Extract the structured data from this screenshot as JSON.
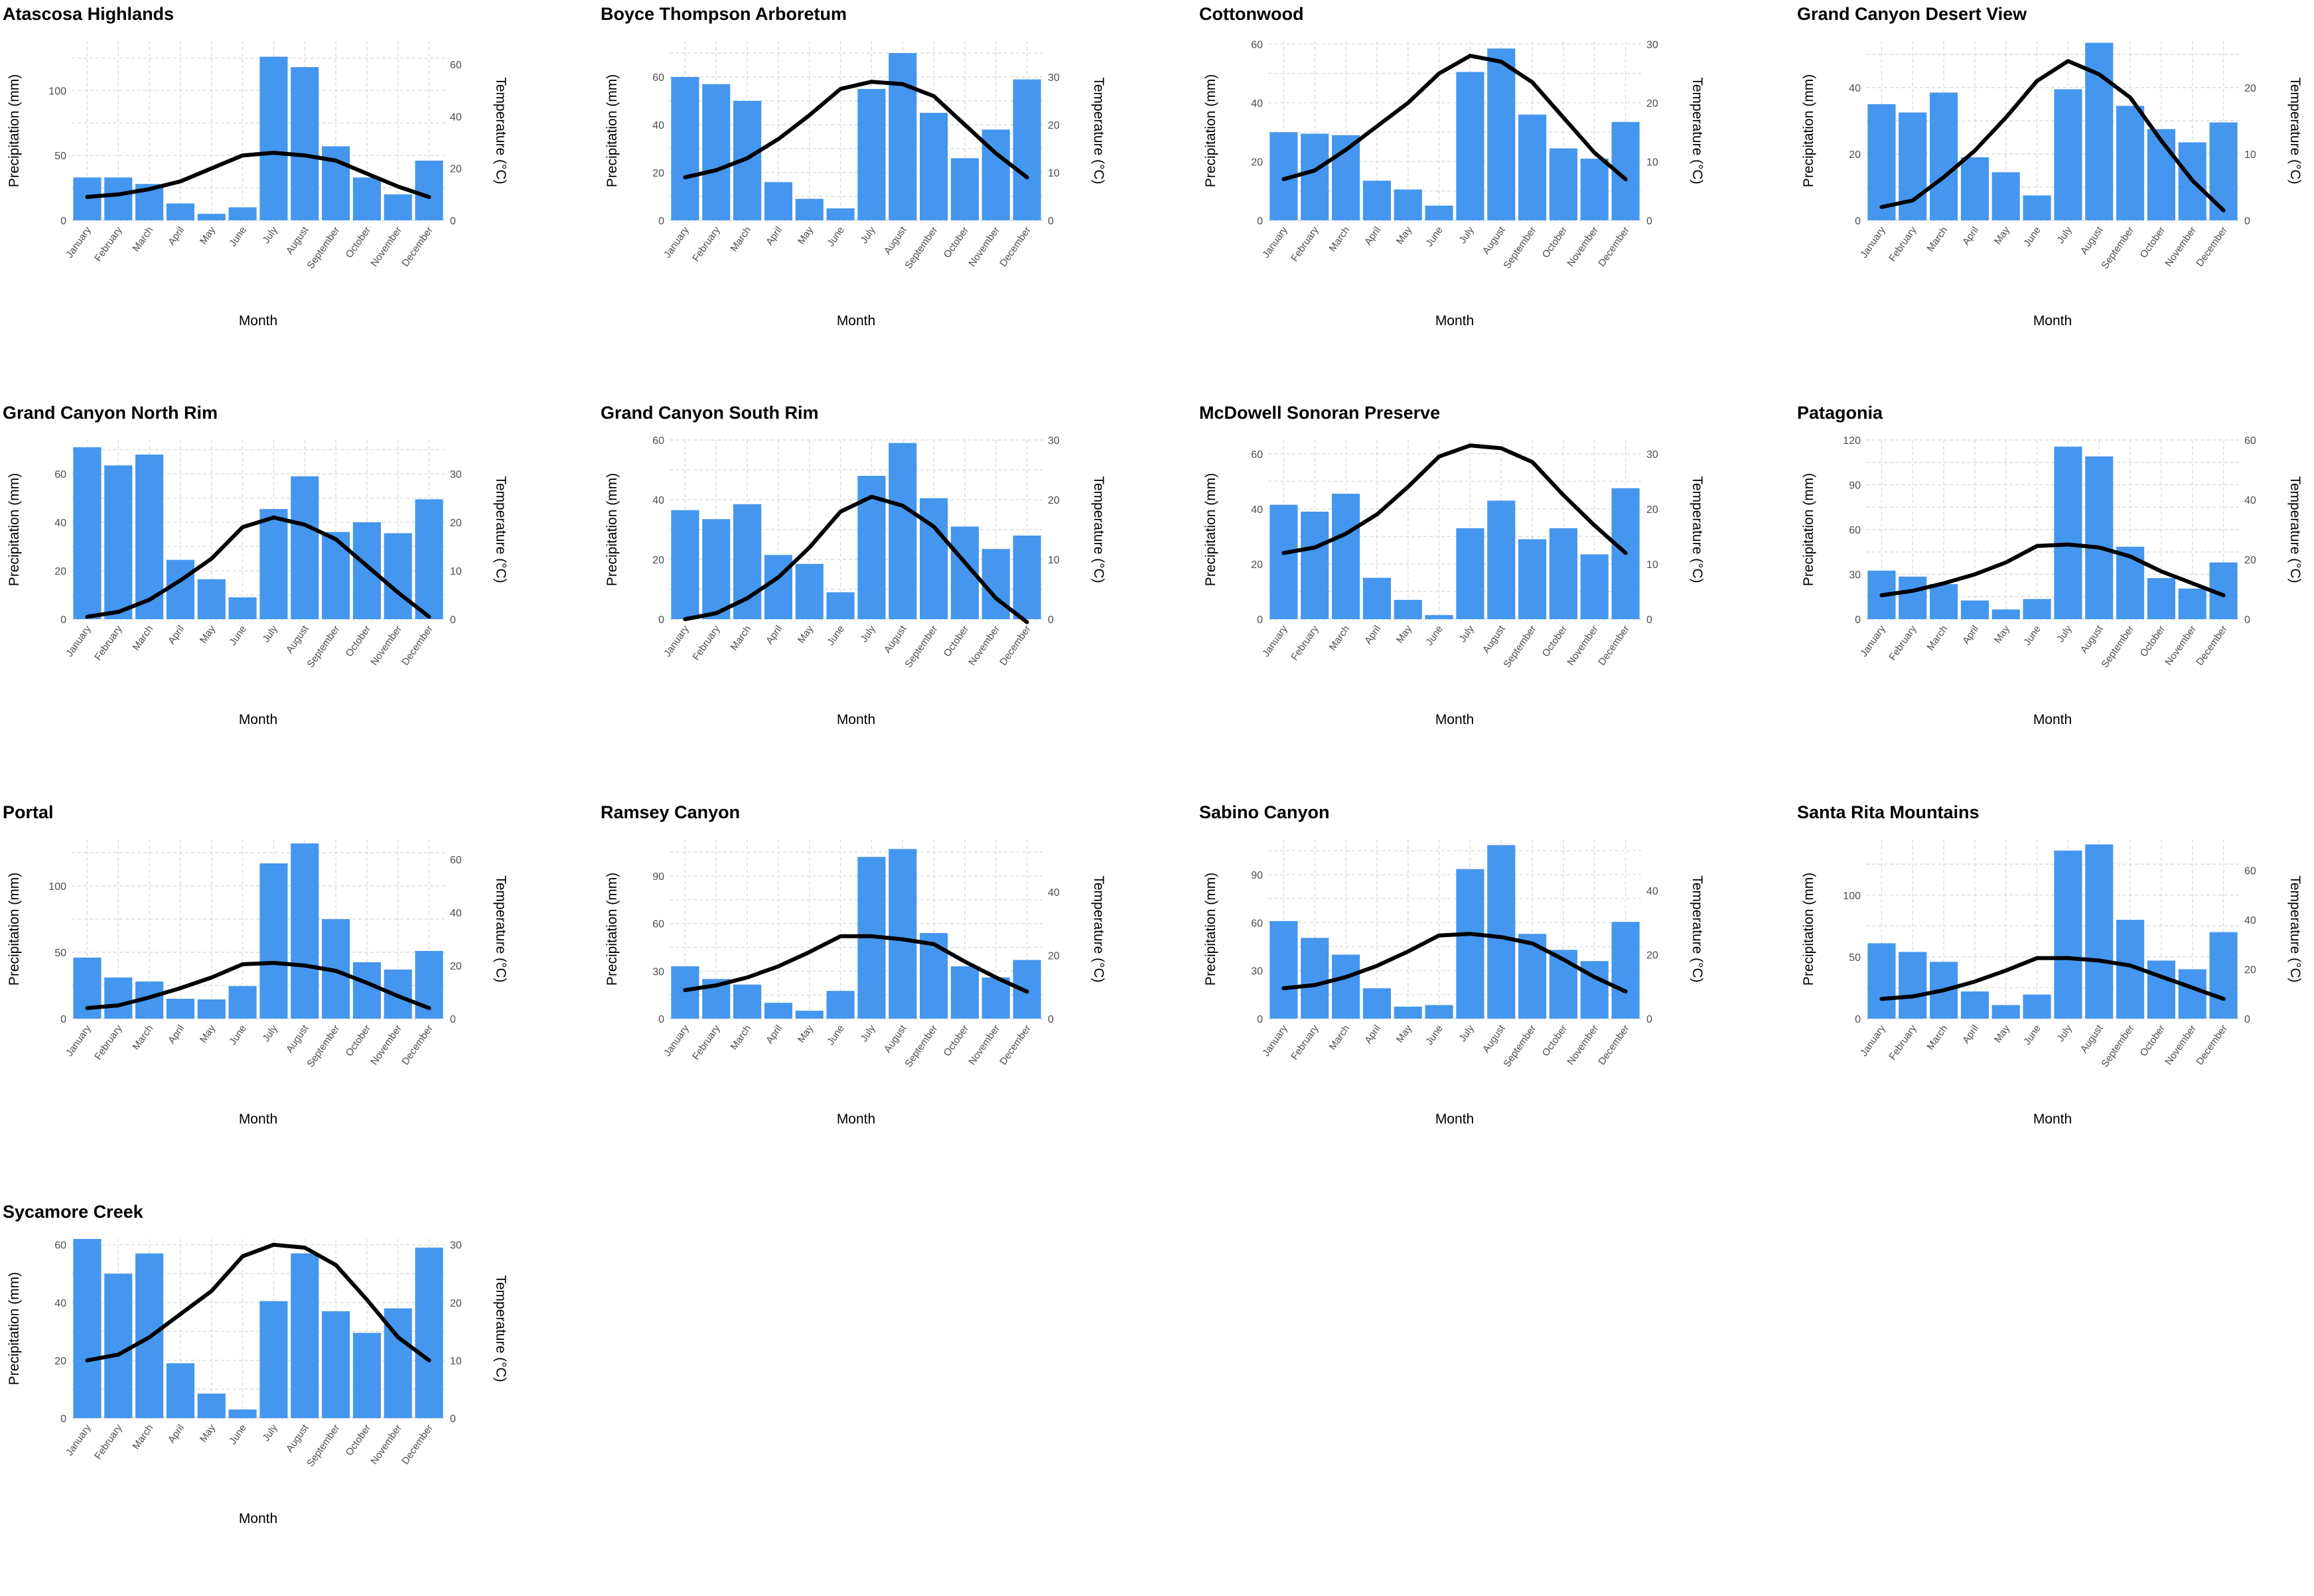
{
  "common": {
    "months": [
      "January",
      "February",
      "March",
      "April",
      "May",
      "June",
      "July",
      "August",
      "September",
      "October",
      "November",
      "December"
    ],
    "xlabel": "Month",
    "ylabel_left": "Precipitation (mm)",
    "ylabel_right": "Temperature (°C)",
    "bar_color": "#4596ee",
    "line_color": "#000000"
  },
  "chart_data": [
    {
      "type": "bar",
      "title": "Atascosa Highlands",
      "precip_ticks": [
        0,
        50,
        100
      ],
      "precip_lim": [
        0,
        138
      ],
      "temp_ticks": [
        0,
        20,
        40,
        60
      ],
      "temp_lim": [
        0,
        69
      ],
      "categories": [
        "January",
        "February",
        "March",
        "April",
        "May",
        "June",
        "July",
        "August",
        "September",
        "October",
        "November",
        "December"
      ],
      "series": [
        {
          "values": [
            33,
            33,
            28,
            13,
            5,
            10,
            126,
            118,
            57,
            33,
            20,
            46
          ]
        },
        {
          "values": [
            9,
            10,
            12,
            15,
            20,
            25,
            26,
            25,
            23,
            18,
            13,
            9
          ]
        }
      ]
    },
    {
      "type": "bar",
      "title": "Boyce Thompson Arboretum",
      "precip_ticks": [
        0,
        20,
        40,
        60
      ],
      "precip_lim": [
        0,
        75
      ],
      "temp_ticks": [
        0,
        10,
        20,
        30
      ],
      "temp_lim": [
        0,
        37.5
      ],
      "categories": [
        "January",
        "February",
        "March",
        "April",
        "May",
        "June",
        "July",
        "August",
        "September",
        "October",
        "November",
        "December"
      ],
      "series": [
        {
          "values": [
            60,
            57,
            50,
            16,
            9,
            5,
            55,
            70,
            45,
            26,
            38,
            59
          ]
        },
        {
          "values": [
            9,
            10.5,
            13,
            17,
            22,
            27.5,
            29,
            28.5,
            26,
            20,
            14,
            9
          ]
        }
      ]
    },
    {
      "type": "bar",
      "title": "Cottonwood",
      "precip_ticks": [
        0,
        20,
        40,
        60
      ],
      "precip_lim": [
        0,
        61
      ],
      "temp_ticks": [
        0,
        10,
        20,
        30
      ],
      "temp_lim": [
        0,
        30.5
      ],
      "categories": [
        "January",
        "February",
        "March",
        "April",
        "May",
        "June",
        "July",
        "August",
        "September",
        "October",
        "November",
        "December"
      ],
      "series": [
        {
          "values": [
            30,
            29.5,
            29,
            13.5,
            10.5,
            5,
            50.5,
            58.5,
            36,
            24.5,
            21,
            33.5
          ]
        },
        {
          "values": [
            7,
            8.5,
            12,
            16,
            20,
            25,
            28,
            27,
            23.5,
            17.5,
            11.5,
            7
          ]
        }
      ]
    },
    {
      "type": "bar",
      "title": "Grand Canyon Desert View",
      "precip_ticks": [
        0,
        20,
        40
      ],
      "precip_lim": [
        0,
        54
      ],
      "temp_ticks": [
        0,
        10,
        20
      ],
      "temp_lim": [
        0,
        27
      ],
      "categories": [
        "January",
        "February",
        "March",
        "April",
        "May",
        "June",
        "July",
        "August",
        "September",
        "October",
        "November",
        "December"
      ],
      "series": [
        {
          "values": [
            35,
            32.5,
            38.5,
            19,
            14.5,
            7.5,
            39.5,
            53.5,
            34.5,
            27.5,
            23.5,
            29.5
          ]
        },
        {
          "values": [
            2,
            3,
            6.5,
            10.5,
            15.5,
            21,
            24,
            22,
            18.5,
            12,
            6,
            1.5
          ]
        }
      ]
    },
    {
      "type": "bar",
      "title": "Grand Canyon North Rim",
      "precip_ticks": [
        0,
        20,
        40,
        60
      ],
      "precip_lim": [
        0,
        74
      ],
      "temp_ticks": [
        0,
        10,
        20,
        30
      ],
      "temp_lim": [
        0,
        37
      ],
      "categories": [
        "January",
        "February",
        "March",
        "April",
        "May",
        "June",
        "July",
        "August",
        "September",
        "October",
        "November",
        "December"
      ],
      "series": [
        {
          "values": [
            71,
            63.5,
            68,
            24.5,
            16.5,
            9,
            45.5,
            59,
            36,
            40,
            35.5,
            49.5
          ]
        },
        {
          "values": [
            0.5,
            1.5,
            4,
            8,
            12.5,
            19,
            21,
            19.5,
            16.5,
            11,
            5.5,
            0.5
          ]
        }
      ]
    },
    {
      "type": "bar",
      "title": "Grand Canyon South Rim",
      "precip_ticks": [
        0,
        20,
        40,
        60
      ],
      "precip_lim": [
        0,
        60
      ],
      "temp_ticks": [
        0,
        10,
        20,
        30
      ],
      "temp_lim": [
        0,
        30
      ],
      "categories": [
        "January",
        "February",
        "March",
        "April",
        "May",
        "June",
        "July",
        "August",
        "September",
        "October",
        "November",
        "December"
      ],
      "series": [
        {
          "values": [
            36.5,
            33.5,
            38.5,
            21.5,
            18.5,
            9,
            48,
            59,
            40.5,
            31,
            23.5,
            28
          ]
        },
        {
          "values": [
            0,
            1,
            3.5,
            7,
            12,
            18,
            20.5,
            19,
            15.5,
            9.5,
            3.5,
            -0.5
          ]
        }
      ]
    },
    {
      "type": "bar",
      "title": "McDowell Sonoran Preserve",
      "precip_ticks": [
        0,
        20,
        40,
        60
      ],
      "precip_lim": [
        0,
        65
      ],
      "temp_ticks": [
        0,
        10,
        20,
        30
      ],
      "temp_lim": [
        0,
        32.5
      ],
      "categories": [
        "January",
        "February",
        "March",
        "April",
        "May",
        "June",
        "July",
        "August",
        "September",
        "October",
        "November",
        "December"
      ],
      "series": [
        {
          "values": [
            41.5,
            39,
            45.5,
            15,
            7,
            1.5,
            33,
            43,
            29,
            33,
            23.5,
            47.5
          ]
        },
        {
          "values": [
            12,
            13,
            15.5,
            19,
            24,
            29.5,
            31.5,
            31,
            28.5,
            22.5,
            17,
            12
          ]
        }
      ]
    },
    {
      "type": "bar",
      "title": "Patagonia",
      "precip_ticks": [
        0,
        30,
        60,
        90,
        120
      ],
      "precip_lim": [
        0,
        120
      ],
      "temp_ticks": [
        0,
        20,
        40,
        60
      ],
      "temp_lim": [
        0,
        60
      ],
      "categories": [
        "January",
        "February",
        "March",
        "April",
        "May",
        "June",
        "July",
        "August",
        "September",
        "October",
        "November",
        "December"
      ],
      "series": [
        {
          "values": [
            32.5,
            28.5,
            23.5,
            12.5,
            6.5,
            13.5,
            115.5,
            109,
            48.5,
            27.5,
            20.5,
            38
          ]
        },
        {
          "values": [
            8,
            9.5,
            12,
            15,
            19,
            24.5,
            25,
            24,
            21,
            16,
            12,
            8
          ]
        }
      ]
    },
    {
      "type": "bar",
      "title": "Portal",
      "precip_ticks": [
        0,
        50,
        100
      ],
      "precip_lim": [
        0,
        135
      ],
      "temp_ticks": [
        0,
        20,
        40,
        60
      ],
      "temp_lim": [
        0,
        67.5
      ],
      "categories": [
        "January",
        "February",
        "March",
        "April",
        "May",
        "June",
        "July",
        "August",
        "September",
        "October",
        "November",
        "December"
      ],
      "series": [
        {
          "values": [
            46,
            31,
            28,
            15,
            14.5,
            24.5,
            117,
            132,
            75,
            42.5,
            37,
            51
          ]
        },
        {
          "values": [
            4,
            5,
            8,
            11.5,
            15.5,
            20.5,
            21,
            20,
            18,
            13.5,
            8.5,
            4
          ]
        }
      ]
    },
    {
      "type": "bar",
      "title": "Ramsey Canyon",
      "precip_ticks": [
        0,
        30,
        60,
        90
      ],
      "precip_lim": [
        0,
        113
      ],
      "temp_ticks": [
        0,
        20,
        40
      ],
      "temp_lim": [
        0,
        56.5
      ],
      "categories": [
        "January",
        "February",
        "March",
        "April",
        "May",
        "June",
        "July",
        "August",
        "September",
        "October",
        "November",
        "December"
      ],
      "series": [
        {
          "values": [
            33,
            25,
            21.5,
            10,
            5,
            17.5,
            102,
            107,
            54,
            33,
            26,
            37
          ]
        },
        {
          "values": [
            9,
            10.5,
            13,
            16.5,
            21,
            26,
            26,
            25,
            23.5,
            18,
            13,
            8.5
          ]
        }
      ]
    },
    {
      "type": "bar",
      "title": "Sabino Canyon",
      "precip_ticks": [
        0,
        30,
        60,
        90
      ],
      "precip_lim": [
        0,
        112
      ],
      "temp_ticks": [
        0,
        20,
        40
      ],
      "temp_lim": [
        0,
        56
      ],
      "categories": [
        "January",
        "February",
        "March",
        "April",
        "May",
        "June",
        "July",
        "August",
        "September",
        "October",
        "November",
        "December"
      ],
      "series": [
        {
          "values": [
            61,
            50.5,
            40,
            19,
            7.5,
            8.5,
            93.5,
            108.5,
            53,
            43,
            36,
            60.5
          ]
        },
        {
          "values": [
            9.5,
            10.5,
            13,
            16.5,
            21,
            26,
            26.5,
            25.5,
            23.5,
            18.5,
            13,
            8.5
          ]
        }
      ]
    },
    {
      "type": "bar",
      "title": "Santa Rita Mountains",
      "precip_ticks": [
        0,
        50,
        100
      ],
      "precip_lim": [
        0,
        145
      ],
      "temp_ticks": [
        0,
        20,
        40,
        60
      ],
      "temp_lim": [
        0,
        72.5
      ],
      "categories": [
        "January",
        "February",
        "March",
        "April",
        "May",
        "June",
        "July",
        "August",
        "September",
        "October",
        "November",
        "December"
      ],
      "series": [
        {
          "values": [
            61,
            54,
            46,
            22,
            11,
            19.5,
            136,
            141,
            80,
            47,
            40,
            70
          ]
        },
        {
          "values": [
            8,
            9,
            11.5,
            15,
            19.5,
            24.5,
            24.5,
            23.5,
            21.5,
            17,
            12.5,
            8
          ]
        }
      ]
    },
    {
      "type": "bar",
      "title": "Sycamore Creek",
      "precip_ticks": [
        0,
        20,
        40,
        60
      ],
      "precip_lim": [
        0,
        62
      ],
      "temp_ticks": [
        0,
        10,
        20,
        30
      ],
      "temp_lim": [
        0,
        31
      ],
      "categories": [
        "January",
        "February",
        "March",
        "April",
        "May",
        "June",
        "July",
        "August",
        "September",
        "October",
        "November",
        "December"
      ],
      "series": [
        {
          "values": [
            62,
            50,
            57,
            19,
            8.5,
            3,
            40.5,
            57,
            37,
            29.5,
            38,
            59
          ]
        },
        {
          "values": [
            10,
            11,
            14,
            18,
            22,
            28,
            30,
            29.5,
            26.5,
            20.5,
            14,
            10
          ]
        }
      ]
    }
  ]
}
